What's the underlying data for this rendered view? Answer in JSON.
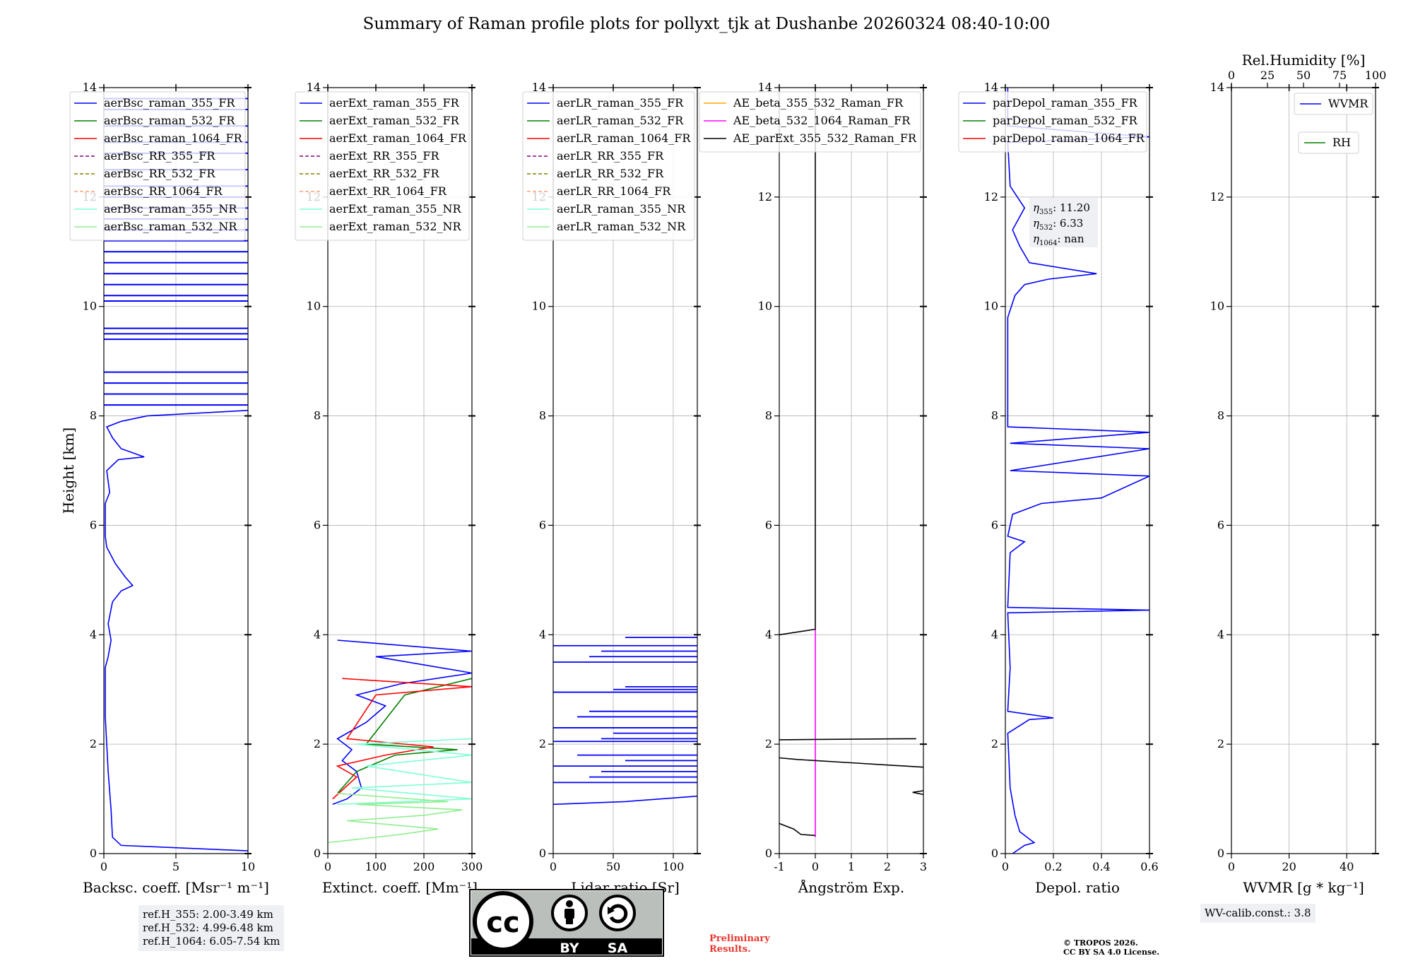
{
  "title": "Summary of Raman profile plots for pollyxt_tjk at Dushanbe 20260324 08:40-10:00",
  "colors": {
    "blue": "#0000ff",
    "green": "#008000",
    "red": "#ff0000",
    "purple": "#800080",
    "olive": "#808000",
    "salmon": "#ffa07a",
    "cyan": "#7fffd4",
    "lightgreen": "#90ee90",
    "orange": "#ffa500",
    "magenta": "#ff00ff",
    "black": "#000000",
    "prelim_red": "#e8372f"
  },
  "chart_data": [
    {
      "type": "line",
      "xlabel": "Backsc. coeff. [Msr⁻¹ m⁻¹]",
      "ylabel": "Height [km]",
      "xlim": [
        0,
        10
      ],
      "ylim": [
        0,
        14
      ],
      "xticks": [
        0,
        5,
        10
      ],
      "yticks": [
        0,
        2,
        4,
        6,
        8,
        10,
        12,
        14
      ],
      "legend": [
        "aerBsc_raman_355_FR",
        "aerBsc_raman_532_FR",
        "aerBsc_raman_1064_FR",
        "aerBsc_RR_355_FR",
        "aerBsc_RR_532_FR",
        "aerBsc_RR_1064_FR",
        "aerBsc_raman_355_NR",
        "aerBsc_raman_532_NR"
      ],
      "legend_colors": [
        "#0000ff",
        "#008000",
        "#ff0000",
        "#800080",
        "#808000",
        "#ffa07a",
        "#7fffd4",
        "#90ee90"
      ],
      "legend_dashed": [
        false,
        false,
        false,
        true,
        true,
        true,
        false,
        false
      ],
      "legend_position": "top",
      "series": [
        {
          "name": "aerBsc_raman_355_FR",
          "color": "#0000ff",
          "points": [
            [
              10,
              0.05
            ],
            [
              1.2,
              0.15
            ],
            [
              0.6,
              0.3
            ],
            [
              0.5,
              0.8
            ],
            [
              0.3,
              1.5
            ],
            [
              0.2,
              2.0
            ],
            [
              0.1,
              2.5
            ],
            [
              0.1,
              3.4
            ],
            [
              0.3,
              3.6
            ],
            [
              0.5,
              3.9
            ],
            [
              0.3,
              4.2
            ],
            [
              0.6,
              4.6
            ],
            [
              1.2,
              4.8
            ],
            [
              2.0,
              4.9
            ],
            [
              1.5,
              5.05
            ],
            [
              0.8,
              5.3
            ],
            [
              0.2,
              5.6
            ],
            [
              0.1,
              5.8
            ],
            [
              0.1,
              6.4
            ],
            [
              0.4,
              6.6
            ],
            [
              0.2,
              7.0
            ],
            [
              1.0,
              7.2
            ],
            [
              2.8,
              7.25
            ],
            [
              1.2,
              7.4
            ],
            [
              0.6,
              7.6
            ],
            [
              0.2,
              7.8
            ],
            [
              1.2,
              7.9
            ],
            [
              3.0,
              8.0
            ],
            [
              10,
              8.1
            ]
          ]
        },
        {
          "name": "aerBsc_raman_355_FR_upper",
          "color": "#0000ff",
          "y_values": [
            8.2,
            8.4,
            8.6,
            8.8,
            9.4,
            9.5,
            9.6,
            10.1,
            10.2,
            10.4,
            10.6,
            10.8,
            11.0,
            11.2,
            11.4,
            11.6,
            11.8,
            12.0,
            12.2,
            12.5,
            12.8,
            13.0,
            13.3,
            13.6,
            13.8
          ],
          "x_from": 0,
          "x_to": 10
        }
      ]
    },
    {
      "type": "line",
      "xlabel": "Extinct. coeff. [Mm⁻¹]",
      "xlim": [
        0,
        300
      ],
      "ylim": [
        0,
        14
      ],
      "xticks": [
        0,
        100,
        200,
        300
      ],
      "yticks": [
        0,
        2,
        4,
        6,
        8,
        10,
        12,
        14
      ],
      "legend": [
        "aerExt_raman_355_FR",
        "aerExt_raman_532_FR",
        "aerExt_raman_1064_FR",
        "aerExt_RR_355_FR",
        "aerExt_RR_532_FR",
        "aerExt_RR_1064_FR",
        "aerExt_raman_355_NR",
        "aerExt_raman_532_NR"
      ],
      "legend_colors": [
        "#0000ff",
        "#008000",
        "#ff0000",
        "#800080",
        "#808000",
        "#ffa07a",
        "#7fffd4",
        "#90ee90"
      ],
      "legend_dashed": [
        false,
        false,
        false,
        true,
        true,
        true,
        false,
        false
      ],
      "legend_position": "top",
      "series": [
        {
          "name": "aerExt_raman_355_FR",
          "color": "#0000ff",
          "points": [
            [
              10,
              0.9
            ],
            [
              40,
              1.0
            ],
            [
              70,
              1.2
            ],
            [
              60,
              1.5
            ],
            [
              30,
              1.7
            ],
            [
              50,
              1.9
            ],
            [
              20,
              2.1
            ],
            [
              80,
              2.4
            ],
            [
              120,
              2.7
            ],
            [
              60,
              2.9
            ],
            [
              150,
              3.1
            ],
            [
              300,
              3.3
            ],
            [
              100,
              3.6
            ],
            [
              300,
              3.7
            ],
            [
              20,
              3.9
            ]
          ]
        },
        {
          "name": "aerExt_raman_532_FR",
          "color": "#008000",
          "points": [
            [
              20,
              1.1
            ],
            [
              60,
              1.5
            ],
            [
              140,
              1.8
            ],
            [
              270,
              1.9
            ],
            [
              80,
              2.0
            ],
            [
              160,
              2.9
            ],
            [
              300,
              3.2
            ]
          ]
        },
        {
          "name": "aerExt_raman_1064_FR",
          "color": "#ff0000",
          "points": [
            [
              10,
              1.0
            ],
            [
              60,
              1.4
            ],
            [
              20,
              1.6
            ],
            [
              120,
              1.8
            ],
            [
              220,
              1.95
            ],
            [
              40,
              2.1
            ],
            [
              100,
              2.9
            ],
            [
              300,
              3.05
            ],
            [
              30,
              3.2
            ]
          ]
        },
        {
          "name": "aerExt_raman_355_NR",
          "color": "#7fffd4",
          "points": [
            [
              20,
              0.9
            ],
            [
              300,
              1.0
            ],
            [
              50,
              1.2
            ],
            [
              300,
              1.3
            ],
            [
              80,
              1.6
            ],
            [
              300,
              1.8
            ],
            [
              60,
              2.0
            ],
            [
              300,
              2.1
            ]
          ]
        },
        {
          "name": "aerExt_raman_532_NR",
          "color": "#90ee90",
          "points": [
            [
              0,
              0.2
            ],
            [
              150,
              0.35
            ],
            [
              230,
              0.45
            ],
            [
              40,
              0.6
            ],
            [
              200,
              0.7
            ],
            [
              280,
              0.8
            ],
            [
              60,
              0.9
            ],
            [
              250,
              0.95
            ],
            [
              20,
              1.1
            ]
          ]
        }
      ]
    },
    {
      "type": "line",
      "xlabel": "Lidar ratio [Sr]",
      "xlim": [
        0,
        120
      ],
      "ylim": [
        0,
        14
      ],
      "xticks": [
        0,
        50,
        100
      ],
      "yticks": [
        0,
        2,
        4,
        6,
        8,
        10,
        12,
        14
      ],
      "legend": [
        "aerLR_raman_355_FR",
        "aerLR_raman_532_FR",
        "aerLR_raman_1064_FR",
        "aerLR_RR_355_FR",
        "aerLR_RR_532_FR",
        "aerLR_RR_1064_FR",
        "aerLR_raman_355_NR",
        "aerLR_raman_532_NR"
      ],
      "legend_colors": [
        "#0000ff",
        "#008000",
        "#ff0000",
        "#800080",
        "#808000",
        "#ffa07a",
        "#7fffd4",
        "#90ee90"
      ],
      "legend_dashed": [
        false,
        false,
        false,
        true,
        true,
        true,
        false,
        false
      ],
      "legend_position": "top",
      "series": [
        {
          "name": "aerLR_raman_355_FR",
          "color": "#0000ff",
          "points": [
            [
              0,
              0.9
            ],
            [
              60,
              0.95
            ],
            [
              90,
              1.0
            ],
            [
              120,
              1.05
            ]
          ],
          "y_steps": [
            1.3,
            1.4,
            1.5,
            1.6,
            1.7,
            1.8,
            2.05,
            2.1,
            2.2,
            2.3,
            2.5,
            2.6,
            2.95,
            3.0,
            3.05,
            3.5,
            3.6,
            3.7,
            3.8,
            3.95
          ]
        }
      ]
    },
    {
      "type": "line",
      "xlabel": "Ångström Exp.",
      "xlim": [
        -1,
        3
      ],
      "ylim": [
        0,
        14
      ],
      "xticks": [
        -1,
        0,
        1,
        2,
        3
      ],
      "yticks": [
        0,
        2,
        4,
        6,
        8,
        10,
        12,
        14
      ],
      "legend": [
        "AE_beta_355_532_Raman_FR",
        "AE_beta_532_1064_Raman_FR",
        "AE_parExt_355_532_Raman_FR"
      ],
      "legend_colors": [
        "#ffa500",
        "#ff00ff",
        "#000000"
      ],
      "legend_dashed": [
        false,
        false,
        false
      ],
      "legend_position": "top-right",
      "series": [
        {
          "name": "AE_beta_532_1064_Raman_FR",
          "color": "#ff00ff",
          "points": [
            [
              0,
              0.3
            ],
            [
              0,
              4.1
            ]
          ]
        },
        {
          "name": "AE_parExt_355_532_Raman_FR",
          "color": "#000000",
          "points": [
            [
              0,
              14
            ],
            [
              0,
              4.1
            ],
            [
              -1,
              4.0
            ]
          ]
        },
        {
          "name": "AE_parExt_355_532_Raman_FR_b",
          "color": "#000000",
          "points": [
            [
              -1,
              2.08
            ],
            [
              2.8,
              2.1
            ]
          ]
        },
        {
          "name": "AE_parExt_355_532_Raman_FR_c",
          "color": "#000000",
          "points": [
            [
              -1,
              1.75
            ],
            [
              -0.5,
              1.72
            ],
            [
              1.0,
              1.66
            ],
            [
              3,
              1.58
            ]
          ]
        },
        {
          "name": "AE_parExt_355_532_Raman_FR_d",
          "color": "#000000",
          "points": [
            [
              3,
              1.15
            ],
            [
              2.7,
              1.12
            ],
            [
              3,
              1.08
            ]
          ]
        },
        {
          "name": "AE_parExt_355_532_Raman_FR_e",
          "color": "#000000",
          "points": [
            [
              -1,
              0.55
            ],
            [
              -0.6,
              0.45
            ],
            [
              -0.4,
              0.35
            ],
            [
              0,
              0.33
            ]
          ]
        }
      ]
    },
    {
      "type": "line",
      "xlabel": "Depol. ratio",
      "xlim": [
        0,
        0.6
      ],
      "ylim": [
        0,
        14
      ],
      "xticks": [
        0.0,
        0.2,
        0.4,
        0.6
      ],
      "yticks": [
        0,
        2,
        4,
        6,
        8,
        10,
        12,
        14
      ],
      "legend": [
        "parDepol_raman_355_FR",
        "parDepol_raman_532_FR",
        "parDepol_raman_1064_FR"
      ],
      "legend_colors": [
        "#0000ff",
        "#008000",
        "#ff0000"
      ],
      "legend_dashed": [
        false,
        false,
        false
      ],
      "legend_position": "top",
      "annotation": [
        {
          "sym": "η",
          "sub": "355",
          "text": ": 11.20"
        },
        {
          "sym": "η",
          "sub": "532",
          "text": ": 6.33"
        },
        {
          "sym": "η",
          "sub": "1064",
          "text": ": nan"
        }
      ],
      "series": [
        {
          "name": "parDepol_raman_355_FR",
          "color": "#0000ff",
          "points": [
            [
              0.03,
              0.0
            ],
            [
              0.08,
              0.15
            ],
            [
              0.12,
              0.2
            ],
            [
              0.06,
              0.4
            ],
            [
              0.04,
              0.7
            ],
            [
              0.02,
              1.2
            ],
            [
              0.01,
              2.2
            ],
            [
              0.1,
              2.45
            ],
            [
              0.2,
              2.48
            ],
            [
              0.01,
              2.6
            ],
            [
              0.02,
              3.4
            ],
            [
              0.01,
              4.4
            ],
            [
              0.6,
              4.45
            ],
            [
              0.01,
              4.5
            ],
            [
              0.02,
              5.5
            ],
            [
              0.08,
              5.7
            ],
            [
              0.01,
              5.8
            ],
            [
              0.03,
              6.2
            ],
            [
              0.15,
              6.4
            ],
            [
              0.4,
              6.5
            ],
            [
              0.6,
              6.9
            ],
            [
              0.02,
              7.0
            ],
            [
              0.6,
              7.4
            ],
            [
              0.02,
              7.5
            ],
            [
              0.6,
              7.7
            ],
            [
              0.01,
              7.8
            ],
            [
              0.01,
              9.8
            ],
            [
              0.04,
              10.2
            ],
            [
              0.08,
              10.4
            ],
            [
              0.18,
              10.5
            ],
            [
              0.38,
              10.6
            ],
            [
              0.1,
              10.8
            ],
            [
              0.06,
              11.1
            ],
            [
              0.03,
              11.4
            ],
            [
              0.08,
              11.8
            ],
            [
              0.02,
              12.2
            ],
            [
              0.01,
              13.0
            ],
            [
              0.6,
              13.1
            ],
            [
              0.01,
              13.3
            ],
            [
              0.01,
              14
            ]
          ]
        }
      ]
    },
    {
      "type": "line",
      "xlabel": "WVMR [g * kg⁻¹]",
      "xlim": [
        0,
        50
      ],
      "ylim": [
        0,
        14
      ],
      "xticks": [
        0,
        20,
        40
      ],
      "yticks": [
        0,
        2,
        4,
        6,
        8,
        10,
        12,
        14
      ],
      "secondary_axis": {
        "label": "Rel.Humidity [%]",
        "lim": [
          0,
          100
        ],
        "ticks": [
          0,
          25,
          50,
          75,
          100
        ]
      },
      "legend": [
        "WVMR",
        "RH"
      ],
      "legend_colors": [
        "#0000ff",
        "#008000"
      ],
      "legend_dashed": [
        false,
        false
      ],
      "legend_position": "top-right",
      "series": []
    }
  ],
  "ref_heights": {
    "h355": "ref.H_355: 2.00-3.49 km",
    "h532": "ref.H_532: 4.99-6.48 km",
    "h1064": "ref.H_1064: 6.05-7.54 km"
  },
  "wv_calib": "WV-calib.const.: 3.8",
  "license_badge": {
    "cc": "cc",
    "by": "BY",
    "sa": "SA"
  },
  "prelim": {
    "line1": "Preliminary",
    "line2": "Results."
  },
  "copyright": {
    "line1": "© TROPOS 2026.",
    "line2": "CC BY SA 4.0 License."
  }
}
